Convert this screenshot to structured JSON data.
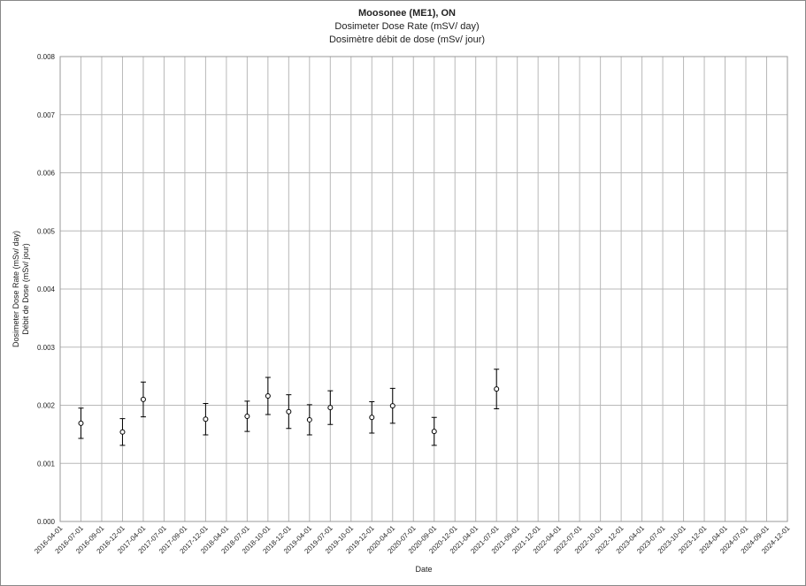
{
  "chart_data": {
    "type": "scatter-errorbar",
    "title": "Moosonee (ME1), ON",
    "subtitle": [
      "Dosimeter Dose Rate (mSV/ day)",
      "Dosimètre débit de dose (mSv/ jour)"
    ],
    "xlabel": "Date",
    "ylabel": [
      "Dosimeter Dose Rate (mSv/ day)",
      "Débit de Dose (mSv/ jour)"
    ],
    "categories": [
      "2016-04-01",
      "2016-07-01",
      "2016-09-01",
      "2016-12-01",
      "2017-04-01",
      "2017-07-01",
      "2017-09-01",
      "2017-12-01",
      "2018-04-01",
      "2018-07-01",
      "2018-10-01",
      "2018-12-01",
      "2019-04-01",
      "2019-07-01",
      "2019-10-01",
      "2019-12-01",
      "2020-04-01",
      "2020-07-01",
      "2020-09-01",
      "2020-12-01",
      "2021-04-01",
      "2021-07-01",
      "2021-09-01",
      "2021-12-01",
      "2022-04-01",
      "2022-07-01",
      "2022-10-01",
      "2022-12-01",
      "2023-04-01",
      "2023-07-01",
      "2023-10-01",
      "2023-12-01",
      "2024-04-01",
      "2024-07-01",
      "2024-09-01",
      "2024-12-01"
    ],
    "values": [
      null,
      0.00169,
      null,
      0.00154,
      0.0021,
      null,
      null,
      0.00176,
      null,
      0.00181,
      0.00216,
      0.00189,
      0.00175,
      0.00196,
      null,
      0.00179,
      0.00199,
      null,
      0.00155,
      null,
      null,
      0.00228,
      null,
      null,
      null,
      null,
      null,
      null,
      null,
      null,
      null,
      null,
      null,
      null,
      null,
      null
    ],
    "errors": [
      null,
      0.00026,
      null,
      0.00023,
      0.0003,
      null,
      null,
      0.00027,
      null,
      0.00026,
      0.00032,
      0.00029,
      0.00026,
      0.00029,
      null,
      0.00027,
      0.0003,
      null,
      0.00024,
      null,
      null,
      0.00034,
      null,
      null,
      null,
      null,
      null,
      null,
      null,
      null,
      null,
      null,
      null,
      null,
      null,
      null
    ],
    "color": "#000000",
    "ylim": [
      0,
      0.008
    ],
    "yticks": [
      {
        "value": 0,
        "label": "0.000"
      },
      {
        "value": 0.001,
        "label": "0.001"
      },
      {
        "value": 0.002,
        "label": "0.002"
      },
      {
        "value": 0.003,
        "label": "0.003"
      },
      {
        "value": 0.004,
        "label": "0.004"
      },
      {
        "value": 0.005,
        "label": "0.005"
      },
      {
        "value": 0.006,
        "label": "0.006"
      },
      {
        "value": 0.007,
        "label": "0.007"
      },
      {
        "value": 0.008,
        "label": "0.008"
      }
    ],
    "grid": true
  }
}
